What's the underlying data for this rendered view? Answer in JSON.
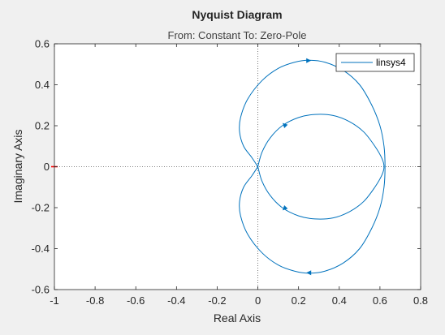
{
  "chart_data": {
    "type": "line",
    "title": "Nyquist Diagram",
    "subtitle": "From: Constant  To: Zero-Pole",
    "xlabel": "Real Axis",
    "ylabel": "Imaginary Axis",
    "xlim": [
      -1,
      0.8
    ],
    "ylim": [
      -0.6,
      0.6
    ],
    "x_ticks": [
      "-1",
      "-0.8",
      "-0.6",
      "-0.4",
      "-0.2",
      "0",
      "0.2",
      "0.4",
      "0.6",
      "0.8"
    ],
    "y_ticks": [
      "-0.6",
      "-0.4",
      "-0.2",
      "0",
      "0.2",
      "0.4",
      "0.6"
    ],
    "x_tick_values": [
      -1,
      -0.8,
      -0.6,
      -0.4,
      -0.2,
      0,
      0.2,
      0.4,
      0.6,
      0.8
    ],
    "y_tick_values": [
      -0.6,
      -0.4,
      -0.2,
      0,
      0.2,
      0.4,
      0.6
    ],
    "grid": false,
    "zero_lines": "dotted",
    "critical_point": [
      -1,
      0
    ],
    "legend_position": "top-right",
    "colors": {
      "line": "#0072bd",
      "critical_point": "#ff0000",
      "zero_line": "#5a5a5a"
    },
    "series": [
      {
        "name": "linsys4",
        "outer_loop": [
          [
            0,
            0
          ],
          [
            -0.03,
            0.045
          ],
          [
            -0.07,
            0.1
          ],
          [
            -0.09,
            0.17
          ],
          [
            -0.085,
            0.24
          ],
          [
            -0.05,
            0.33
          ],
          [
            0.02,
            0.42
          ],
          [
            0.1,
            0.48
          ],
          [
            0.18,
            0.51
          ],
          [
            0.25,
            0.52
          ],
          [
            0.33,
            0.51
          ],
          [
            0.42,
            0.47
          ],
          [
            0.5,
            0.4
          ],
          [
            0.56,
            0.3
          ],
          [
            0.6,
            0.2
          ],
          [
            0.62,
            0.1
          ],
          [
            0.625,
            0
          ],
          [
            0.62,
            -0.1
          ],
          [
            0.6,
            -0.2
          ],
          [
            0.56,
            -0.3
          ],
          [
            0.5,
            -0.4
          ],
          [
            0.42,
            -0.47
          ],
          [
            0.33,
            -0.51
          ],
          [
            0.25,
            -0.52
          ],
          [
            0.18,
            -0.51
          ],
          [
            0.1,
            -0.48
          ],
          [
            0.02,
            -0.42
          ],
          [
            -0.05,
            -0.33
          ],
          [
            -0.085,
            -0.24
          ],
          [
            -0.09,
            -0.17
          ],
          [
            -0.07,
            -0.1
          ],
          [
            -0.03,
            -0.045
          ],
          [
            0,
            0
          ]
        ],
        "inner_loop": [
          [
            0,
            0
          ],
          [
            0.02,
            0.07
          ],
          [
            0.06,
            0.14
          ],
          [
            0.12,
            0.2
          ],
          [
            0.2,
            0.24
          ],
          [
            0.28,
            0.255
          ],
          [
            0.37,
            0.25
          ],
          [
            0.45,
            0.22
          ],
          [
            0.52,
            0.17
          ],
          [
            0.575,
            0.1
          ],
          [
            0.61,
            0.04
          ],
          [
            0.62,
            0
          ],
          [
            0.61,
            -0.04
          ],
          [
            0.575,
            -0.1
          ],
          [
            0.52,
            -0.17
          ],
          [
            0.45,
            -0.22
          ],
          [
            0.37,
            -0.25
          ],
          [
            0.28,
            -0.255
          ],
          [
            0.2,
            -0.24
          ],
          [
            0.12,
            -0.2
          ],
          [
            0.06,
            -0.14
          ],
          [
            0.02,
            -0.07
          ],
          [
            0,
            0
          ]
        ],
        "arrows": [
          {
            "at": [
              0.25,
              0.518
            ],
            "dir": "right"
          },
          {
            "at": [
              0.25,
              -0.518
            ],
            "dir": "left"
          },
          {
            "at": [
              0.13,
              0.205
            ],
            "dir": "down-left"
          },
          {
            "at": [
              0.13,
              -0.205
            ],
            "dir": "down-right"
          }
        ]
      }
    ]
  }
}
